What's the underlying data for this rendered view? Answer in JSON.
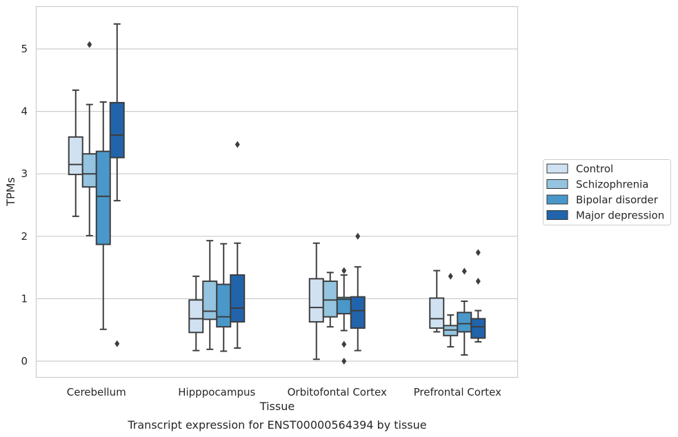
{
  "chart_data": {
    "type": "box",
    "caption": "Transcript expression for ENST00000564394 by tissue",
    "xlabel": "Tissue",
    "ylabel": "TPMs",
    "ylim": [
      -0.25,
      5.6
    ],
    "yticks": [
      0,
      1,
      2,
      3,
      4,
      5
    ],
    "grid": "horizontal",
    "legend_position": "right",
    "categories": [
      "Cerebellum",
      "Hipppocampus",
      "Orbitofontal Cortex",
      "Prefrontal Cortex"
    ],
    "series": [
      {
        "name": "Control",
        "color": "#d0e1f2",
        "boxes": [
          {
            "whislo": 2.32,
            "q1": 2.99,
            "med": 3.15,
            "q3": 3.59,
            "whishi": 4.34,
            "fliers": []
          },
          {
            "whislo": 0.17,
            "q1": 0.46,
            "med": 0.68,
            "q3": 0.98,
            "whishi": 1.36,
            "fliers": []
          },
          {
            "whislo": 0.03,
            "q1": 0.63,
            "med": 0.86,
            "q3": 1.32,
            "whishi": 1.89,
            "fliers": []
          },
          {
            "whislo": 0.47,
            "q1": 0.53,
            "med": 0.68,
            "q3": 1.01,
            "whishi": 1.45,
            "fliers": []
          }
        ]
      },
      {
        "name": "Schizophrenia",
        "color": "#94c4df",
        "boxes": [
          {
            "whislo": 2.01,
            "q1": 2.79,
            "med": 3.0,
            "q3": 3.32,
            "whishi": 4.11,
            "fliers": [
              5.07
            ]
          },
          {
            "whislo": 0.19,
            "q1": 0.67,
            "med": 0.8,
            "q3": 1.28,
            "whishi": 1.93,
            "fliers": []
          },
          {
            "whislo": 0.55,
            "q1": 0.71,
            "med": 0.98,
            "q3": 1.28,
            "whishi": 1.42,
            "fliers": []
          },
          {
            "whislo": 0.23,
            "q1": 0.41,
            "med": 0.5,
            "q3": 0.57,
            "whishi": 0.74,
            "fliers": [
              1.36
            ]
          }
        ]
      },
      {
        "name": "Bipolar disorder",
        "color": "#4a98c9",
        "boxes": [
          {
            "whislo": 0.51,
            "q1": 1.87,
            "med": 2.64,
            "q3": 3.36,
            "whishi": 4.15,
            "fliers": []
          },
          {
            "whislo": 0.16,
            "q1": 0.55,
            "med": 0.71,
            "q3": 1.23,
            "whishi": 1.88,
            "fliers": []
          },
          {
            "whislo": 0.49,
            "q1": 0.76,
            "med": 0.99,
            "q3": 1.02,
            "whishi": 1.38,
            "fliers": [
              1.45,
              0.27,
              0.0
            ]
          },
          {
            "whislo": 0.1,
            "q1": 0.47,
            "med": 0.6,
            "q3": 0.78,
            "whishi": 0.96,
            "fliers": [
              1.44
            ]
          }
        ]
      },
      {
        "name": "Major depression",
        "color": "#2164ab",
        "boxes": [
          {
            "whislo": 2.57,
            "q1": 3.26,
            "med": 3.62,
            "q3": 4.14,
            "whishi": 5.4,
            "fliers": [
              0.28
            ]
          },
          {
            "whislo": 0.21,
            "q1": 0.63,
            "med": 0.85,
            "q3": 1.38,
            "whishi": 1.89,
            "fliers": [
              3.47
            ]
          },
          {
            "whislo": 0.17,
            "q1": 0.53,
            "med": 0.81,
            "q3": 1.03,
            "whishi": 1.51,
            "fliers": [
              2.0
            ]
          },
          {
            "whislo": 0.31,
            "q1": 0.37,
            "med": 0.55,
            "q3": 0.68,
            "whishi": 0.81,
            "fliers": [
              1.74,
              1.28
            ]
          }
        ]
      }
    ]
  }
}
